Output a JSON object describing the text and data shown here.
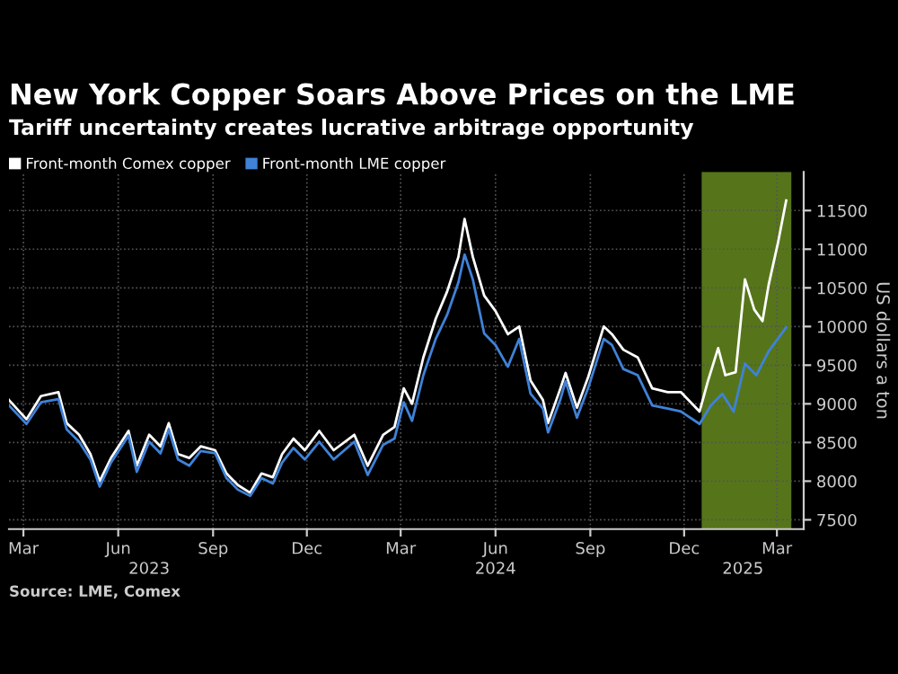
{
  "chart_data": {
    "type": "line",
    "title": "New York Copper Soars Above Prices on the LME",
    "subtitle": "Tariff uncertainty creates lucrative arbitrage opportunity",
    "ylabel": "US dollars a ton",
    "annotations": [
      "Source: LME, Comex"
    ],
    "series": [
      {
        "name": "Front-month Comex copper",
        "color": "#ffffff",
        "x": [
          "2023-03-01",
          "2023-03-18",
          "2023-04-01",
          "2023-04-18",
          "2023-04-26",
          "2023-05-08",
          "2023-05-19",
          "2023-05-28",
          "2023-06-08",
          "2023-06-25",
          "2023-07-03",
          "2023-07-15",
          "2023-07-26",
          "2023-08-03",
          "2023-08-12",
          "2023-08-23",
          "2023-09-03",
          "2023-09-17",
          "2023-09-28",
          "2023-10-09",
          "2023-10-21",
          "2023-11-01",
          "2023-11-12",
          "2023-11-21",
          "2023-12-02",
          "2023-12-13",
          "2023-12-27",
          "2024-01-10",
          "2024-01-30",
          "2024-02-12",
          "2024-02-27",
          "2024-03-09",
          "2024-03-18",
          "2024-03-26",
          "2024-04-06",
          "2024-04-18",
          "2024-04-29",
          "2024-05-10",
          "2024-05-16",
          "2024-05-24",
          "2024-06-04",
          "2024-06-15",
          "2024-06-27",
          "2024-07-08",
          "2024-07-19",
          "2024-07-31",
          "2024-08-05",
          "2024-08-17",
          "2024-08-22",
          "2024-09-02",
          "2024-09-13",
          "2024-09-28",
          "2024-10-06",
          "2024-10-17",
          "2024-10-31",
          "2024-11-14",
          "2024-11-29",
          "2024-12-12",
          "2024-12-30",
          "2025-01-07",
          "2025-01-17",
          "2025-01-24",
          "2025-02-03",
          "2025-02-12",
          "2025-02-21",
          "2025-03-01",
          "2025-03-07",
          "2025-03-16",
          "2025-03-24"
        ],
        "values": [
          9050,
          8800,
          9100,
          9150,
          8750,
          8600,
          8350,
          8000,
          8300,
          8650,
          8200,
          8600,
          8450,
          8750,
          8350,
          8300,
          8450,
          8400,
          8100,
          7950,
          7850,
          8100,
          8050,
          8350,
          8550,
          8400,
          8650,
          8400,
          8600,
          8200,
          8600,
          8700,
          9200,
          9000,
          9600,
          10100,
          10450,
          10900,
          11390,
          10900,
          10400,
          10200,
          9900,
          10000,
          9300,
          9050,
          8750,
          9200,
          9400,
          8950,
          9350,
          10000,
          9900,
          9700,
          9600,
          9200,
          9150,
          9150,
          8900,
          9290,
          9720,
          9370,
          9410,
          10610,
          10220,
          10070,
          10540,
          11080,
          11630
        ]
      },
      {
        "name": "Front-month LME copper",
        "color": "#3f82d8",
        "x": [
          "2023-03-01",
          "2023-03-18",
          "2023-04-01",
          "2023-04-18",
          "2023-04-26",
          "2023-05-08",
          "2023-05-19",
          "2023-05-28",
          "2023-06-08",
          "2023-06-25",
          "2023-07-03",
          "2023-07-15",
          "2023-07-26",
          "2023-08-03",
          "2023-08-12",
          "2023-08-23",
          "2023-09-03",
          "2023-09-17",
          "2023-09-28",
          "2023-10-09",
          "2023-10-21",
          "2023-11-01",
          "2023-11-12",
          "2023-11-21",
          "2023-12-02",
          "2023-12-13",
          "2023-12-27",
          "2024-01-10",
          "2024-01-30",
          "2024-02-12",
          "2024-02-27",
          "2024-03-09",
          "2024-03-18",
          "2024-03-26",
          "2024-04-06",
          "2024-04-18",
          "2024-04-29",
          "2024-05-10",
          "2024-05-16",
          "2024-05-24",
          "2024-06-04",
          "2024-06-15",
          "2024-06-27",
          "2024-07-08",
          "2024-07-19",
          "2024-07-31",
          "2024-08-05",
          "2024-08-17",
          "2024-08-22",
          "2024-09-02",
          "2024-09-13",
          "2024-09-28",
          "2024-10-06",
          "2024-10-17",
          "2024-10-31",
          "2024-11-14",
          "2024-11-29",
          "2024-12-12",
          "2024-12-30",
          "2025-01-10",
          "2025-01-21",
          "2025-02-01",
          "2025-02-12",
          "2025-02-23",
          "2025-03-07",
          "2025-03-24"
        ],
        "values": [
          8980,
          8740,
          9020,
          9060,
          8670,
          8510,
          8280,
          7930,
          8240,
          8590,
          8120,
          8510,
          8360,
          8670,
          8280,
          8200,
          8390,
          8360,
          8040,
          7890,
          7810,
          8040,
          7970,
          8240,
          8430,
          8280,
          8510,
          8280,
          8510,
          8080,
          8470,
          8550,
          9020,
          8780,
          9370,
          9840,
          10150,
          10570,
          10930,
          10610,
          9910,
          9760,
          9480,
          9840,
          9130,
          8940,
          8630,
          9060,
          9290,
          8820,
          9210,
          9840,
          9760,
          9450,
          9370,
          8980,
          8940,
          8900,
          8740,
          8980,
          9130,
          8900,
          9520,
          9370,
          9680,
          9990
        ]
      }
    ],
    "xlim": [
      "2023-03-01",
      "2025-04-10"
    ],
    "xticks": [
      {
        "value": "2023-03-15",
        "label": "Mar"
      },
      {
        "value": "2023-06-15",
        "label": "Jun"
      },
      {
        "value": "2023-09-15",
        "label": "Sep"
      },
      {
        "value": "2023-12-15",
        "label": "Dec"
      },
      {
        "value": "2024-03-15",
        "label": "Mar"
      },
      {
        "value": "2024-06-15",
        "label": "Jun"
      },
      {
        "value": "2024-09-15",
        "label": "Sep"
      },
      {
        "value": "2024-12-15",
        "label": "Dec"
      },
      {
        "value": "2025-03-15",
        "label": "Mar"
      }
    ],
    "x2lim": [
      "2023-03-01",
      "2025-04-10"
    ],
    "x2ticks": [
      {
        "value": "2023-07-15",
        "label": "2023"
      },
      {
        "value": "2024-06-15",
        "label": "2024"
      },
      {
        "value": "2025-02-10",
        "label": "2025"
      }
    ],
    "ylim": [
      7380,
      12000
    ],
    "yticks": [
      7500,
      8000,
      8500,
      9000,
      9500,
      10000,
      10500,
      11000,
      11500
    ],
    "bands": [
      {
        "axis": "x",
        "from": "2025-01-01",
        "to": "2025-03-29",
        "color": "#56751a"
      }
    ],
    "grid": true,
    "legend": "top left",
    "line_style": "solid",
    "marker": "none"
  }
}
